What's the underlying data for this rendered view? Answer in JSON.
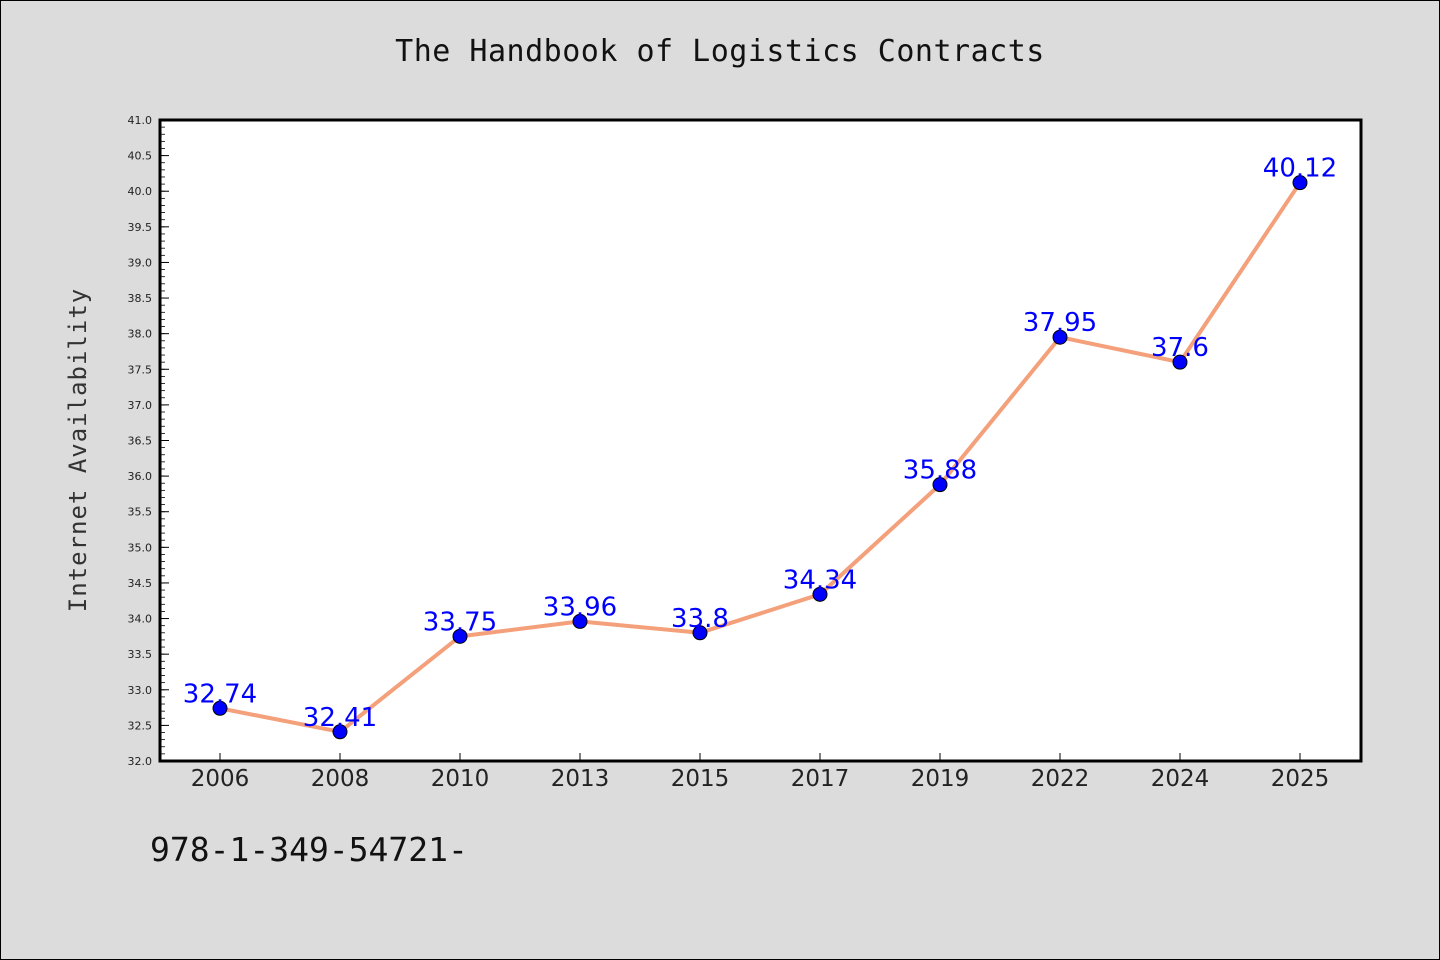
{
  "title": "The Handbook of Logistics Contracts",
  "footer_text": "978-1-349-54721-",
  "colors": {
    "background": "#dcdcdc",
    "plot_background": "#ffffff",
    "line": "#f4a07a",
    "marker": "#0000ff",
    "data_label": "#0000ff"
  },
  "chart_data": {
    "type": "line",
    "title": "The Handbook of Logistics Contracts",
    "xlabel": "",
    "ylabel": "Internet Availability",
    "categories": [
      "2006",
      "2008",
      "2010",
      "2013",
      "2015",
      "2017",
      "2019",
      "2022",
      "2024",
      "2025"
    ],
    "series": [
      {
        "values": [
          32.74,
          32.41,
          33.75,
          33.96,
          33.8,
          34.34,
          35.88,
          37.95,
          37.6,
          40.12
        ],
        "data_labels": [
          "32.74",
          "32.41",
          "33.75",
          "33.96",
          "33.8",
          "34.34",
          "35.88",
          "37.95",
          "37.6",
          "40.12"
        ]
      }
    ],
    "ylim": [
      32.0,
      41.0
    ],
    "y_ticks": [
      "32.0",
      "32.5",
      "33.0",
      "33.5",
      "34.0",
      "34.5",
      "35.0",
      "35.5",
      "36.0",
      "36.5",
      "37.0",
      "37.5",
      "38.0",
      "38.5",
      "39.0",
      "39.5",
      "40.0",
      "40.5",
      "41.0"
    ],
    "grid": false,
    "legend": "none"
  }
}
